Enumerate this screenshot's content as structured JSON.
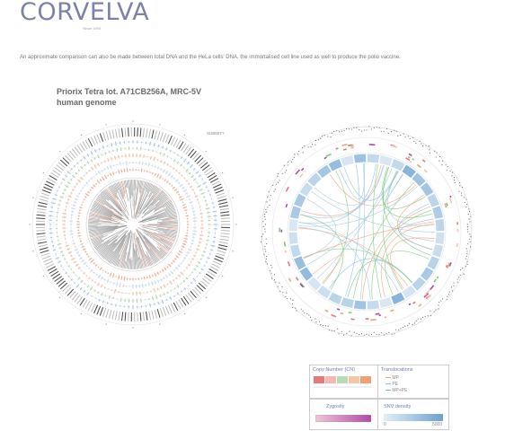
{
  "brand": {
    "name": "CORVELVA",
    "tagline": "Since 1993",
    "color": "#7b82a8"
  },
  "intro_text": "An approximate comparison can also be made between total DNA and the HeLa cells' DNA, the immortalised cell line used as well to produce the polio vaccine.",
  "subtitle": {
    "line1": "Priorix Tetra lot. A71CB256A, MRC-5V",
    "line2": "human genome"
  },
  "left_plot": {
    "tag": "SUBMIT?"
  },
  "legend": {
    "copy_number_title": "Copy Number (CN)",
    "translocations_title": "Translocations",
    "translocation_items": [
      "MP",
      "PE",
      "MP+PE"
    ],
    "zygosity_title": "Zygosity",
    "snv_density_title": "SNV density",
    "snv_min": "0",
    "snv_max": "5000",
    "colors": {
      "cn_low": "#e8787a",
      "cn_mid": "#b8dcb5",
      "cn_high": "#f29f74",
      "mp": "#f0a07c",
      "pe": "#8cc0e4",
      "mp_pe": "#7acb7a",
      "zygosity_low": "#f2c6d8",
      "zygosity_high": "#b04aa8",
      "snv_low": "#e4eff8",
      "snv_high": "#6aa2d2"
    }
  }
}
